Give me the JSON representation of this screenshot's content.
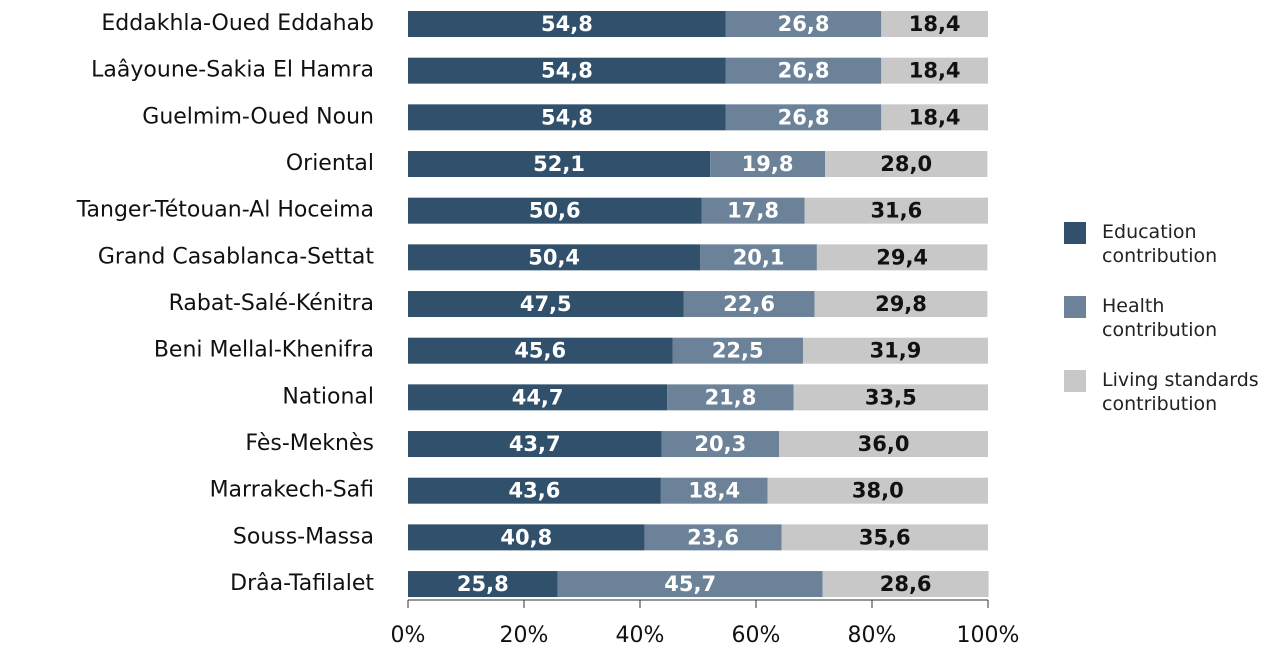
{
  "chart_data": {
    "type": "stacked-bar-horizontal",
    "categories": [
      "Eddakhla-Oued Eddahab",
      "Laâyoune-Sakia El Hamra",
      "Guelmim-Oued Noun",
      "Oriental",
      "Tanger-Tétouan-Al Hoceima",
      "Grand Casablanca-Settat",
      "Rabat-Salé-Kénitra",
      "Beni Mellal-Khenifra",
      "National",
      "Fès-Meknès",
      "Marrakech-Safi",
      "Souss-Massa",
      "Drâa-Tafilalet"
    ],
    "series": [
      {
        "name": "Education contribution",
        "color": "#30506b",
        "label_color": "#ffffff",
        "values": [
          54.8,
          54.8,
          54.8,
          52.1,
          50.6,
          50.4,
          47.5,
          45.6,
          44.7,
          43.7,
          43.6,
          40.8,
          25.8
        ],
        "value_labels": [
          "54,8",
          "54,8",
          "54,8",
          "52,1",
          "50,6",
          "50,4",
          "47,5",
          "45,6",
          "44,7",
          "43,7",
          "43,6",
          "40,8",
          "25,8"
        ]
      },
      {
        "name": "Health contribution",
        "color": "#6b8299",
        "label_color": "#ffffff",
        "values": [
          26.8,
          26.8,
          26.8,
          19.8,
          17.8,
          20.1,
          22.6,
          22.5,
          21.8,
          20.3,
          18.4,
          23.6,
          45.7
        ],
        "value_labels": [
          "26,8",
          "26,8",
          "26,8",
          "19,8",
          "17,8",
          "20,1",
          "22,6",
          "22,5",
          "21,8",
          "20,3",
          "18,4",
          "23,6",
          "45,7"
        ]
      },
      {
        "name": "Living standards contribution",
        "color": "#c8c8c8",
        "label_color": "#111111",
        "values": [
          18.4,
          18.4,
          18.4,
          28.0,
          31.6,
          29.4,
          29.8,
          31.9,
          33.5,
          36.0,
          38.0,
          35.6,
          28.6
        ],
        "value_labels": [
          "18,4",
          "18,4",
          "18,4",
          "28,0",
          "31,6",
          "29,4",
          "29,8",
          "31,9",
          "33,5",
          "36,0",
          "38,0",
          "35,6",
          "28,6"
        ]
      }
    ],
    "xlim": [
      0,
      100
    ],
    "xticks": [
      {
        "value": 0,
        "label": "0%"
      },
      {
        "value": 20,
        "label": "20%"
      },
      {
        "value": 40,
        "label": "40%"
      },
      {
        "value": 60,
        "label": "60%"
      },
      {
        "value": 80,
        "label": "80%"
      },
      {
        "value": 100,
        "label": "100%"
      }
    ],
    "legend": "right"
  }
}
